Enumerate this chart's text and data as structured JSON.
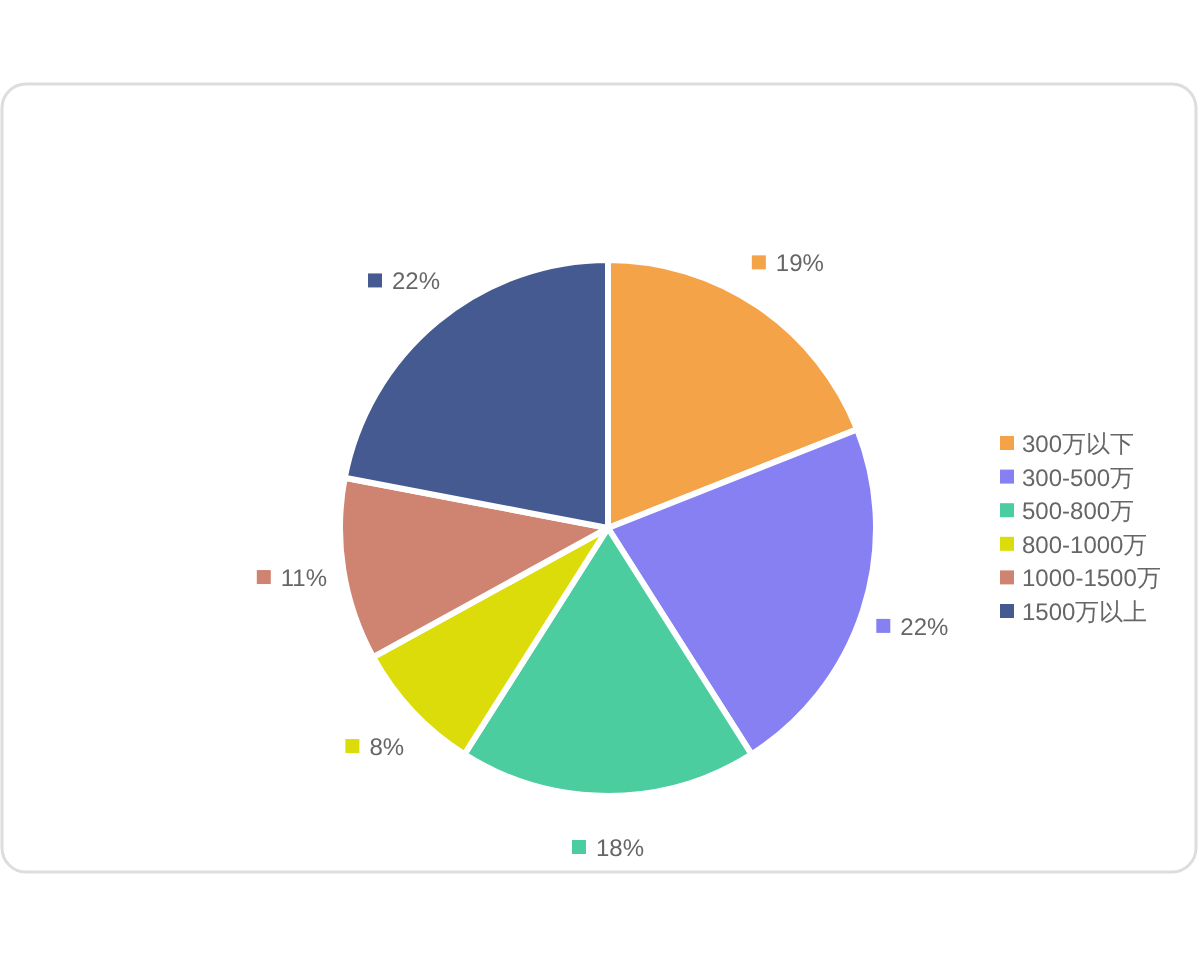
{
  "chart_data": {
    "type": "pie",
    "categories": [
      "300万以下",
      "300-500万",
      "500-800万",
      "800-1000万",
      "1000-1500万",
      "1500万以上"
    ],
    "values": [
      19,
      22,
      18,
      8,
      11,
      22
    ],
    "value_labels": [
      "19%",
      "22%",
      "18%",
      "8%",
      "11%",
      "22%"
    ],
    "colors": [
      "#f5a348",
      "#8680f3",
      "#4ccda0",
      "#dcdc0a",
      "#cf8472",
      "#465a92"
    ],
    "legend": "right"
  }
}
